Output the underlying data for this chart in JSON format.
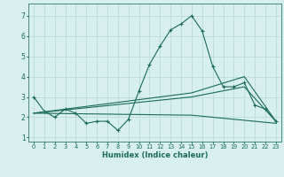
{
  "xlabel": "Humidex (Indice chaleur)",
  "xlim": [
    -0.5,
    23.5
  ],
  "ylim": [
    0.8,
    7.6
  ],
  "yticks": [
    1,
    2,
    3,
    4,
    5,
    6,
    7
  ],
  "xticks": [
    0,
    1,
    2,
    3,
    4,
    5,
    6,
    7,
    8,
    9,
    10,
    11,
    12,
    13,
    14,
    15,
    16,
    17,
    18,
    19,
    20,
    21,
    22,
    23
  ],
  "background_color": "#d7efee",
  "grid_color": "#b8d8d6",
  "line_color": "#1a6b5a",
  "series": [
    {
      "x": [
        0,
        1,
        2,
        3,
        4,
        5,
        6,
        7,
        8,
        9,
        10,
        11,
        12,
        13,
        14,
        15,
        16,
        17,
        18,
        19,
        20,
        21,
        22,
        23
      ],
      "y": [
        3.0,
        2.3,
        2.0,
        2.4,
        2.2,
        1.7,
        1.8,
        1.8,
        1.35,
        1.9,
        3.3,
        4.6,
        5.5,
        6.3,
        6.6,
        7.0,
        6.25,
        4.5,
        3.5,
        3.5,
        3.7,
        2.6,
        2.4,
        1.8
      ],
      "marker": "+"
    },
    {
      "x": [
        0,
        15,
        20,
        23
      ],
      "y": [
        2.2,
        3.0,
        3.5,
        1.8
      ],
      "marker": null
    },
    {
      "x": [
        0,
        15,
        20,
        23
      ],
      "y": [
        2.2,
        3.2,
        4.0,
        1.8
      ],
      "marker": null
    },
    {
      "x": [
        0,
        15,
        23
      ],
      "y": [
        2.2,
        2.1,
        1.7
      ],
      "marker": null
    }
  ]
}
